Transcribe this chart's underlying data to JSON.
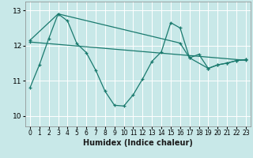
{
  "xlabel": "Humidex (Indice chaleur)",
  "background_color": "#c8e8e8",
  "grid_color": "#aad4d4",
  "line_color": "#1a7a6e",
  "xlim": [
    -0.5,
    23.5
  ],
  "ylim": [
    9.7,
    13.25
  ],
  "yticks": [
    10,
    11,
    12,
    13
  ],
  "xticks": [
    0,
    1,
    2,
    3,
    4,
    5,
    6,
    7,
    8,
    9,
    10,
    11,
    12,
    13,
    14,
    15,
    16,
    17,
    18,
    19,
    20,
    21,
    22,
    23
  ],
  "line1_x": [
    0,
    1,
    2,
    3,
    4,
    5,
    6,
    7,
    8,
    9,
    10,
    11,
    12,
    13,
    14,
    15,
    16,
    17,
    18,
    19,
    20,
    21,
    22,
    23
  ],
  "line1_y": [
    10.8,
    11.45,
    12.2,
    12.9,
    12.7,
    12.05,
    11.8,
    11.3,
    10.7,
    10.3,
    10.28,
    10.6,
    11.05,
    11.55,
    11.82,
    12.65,
    12.5,
    11.65,
    11.75,
    11.35,
    11.45,
    11.5,
    11.57,
    11.6
  ],
  "line2_x": [
    0,
    3,
    16,
    17,
    19,
    20,
    21,
    22,
    23
  ],
  "line2_y": [
    12.15,
    12.9,
    12.07,
    11.65,
    11.35,
    11.45,
    11.5,
    11.57,
    11.6
  ],
  "line3_x": [
    0,
    23
  ],
  "line3_y": [
    12.1,
    11.58
  ]
}
